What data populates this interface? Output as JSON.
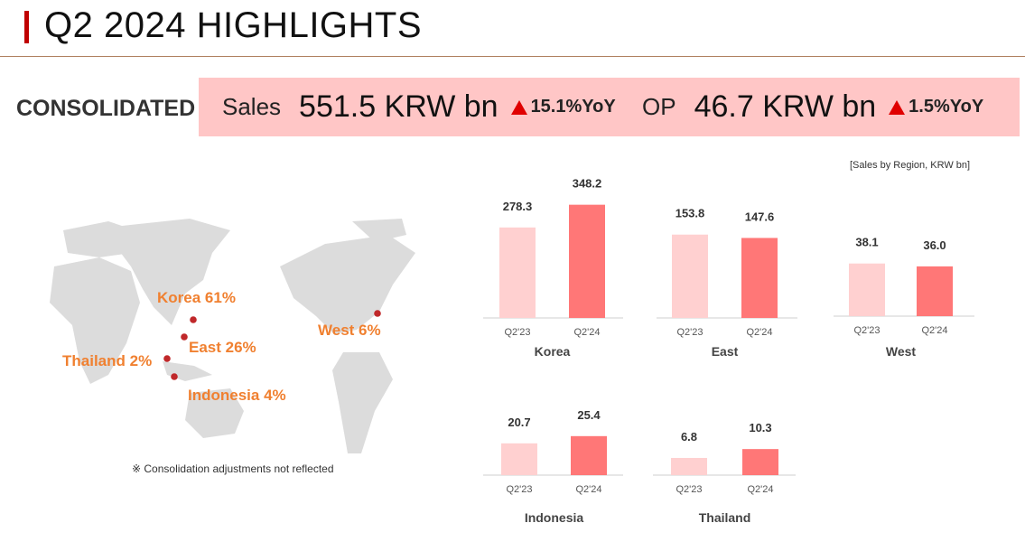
{
  "header": {
    "title": "Q2 2024 HIGHLIGHTS"
  },
  "consolidated": {
    "label": "CONSOLIDATED",
    "sales_label": "Sales",
    "sales_value": "551.5 KRW bn",
    "sales_yoy": "15.1%YoY",
    "op_label": "OP",
    "op_value": "46.7 KRW bn",
    "op_yoy": "1.5%YoY"
  },
  "source_note": "[Sales by Region, KRW bn]",
  "map": {
    "regions": [
      {
        "label": "Korea 61%"
      },
      {
        "label": "East 26%"
      },
      {
        "label": "Thailand 2%"
      },
      {
        "label": "Indonesia 4%"
      },
      {
        "label": "West 6%"
      }
    ],
    "footnote": "※ Consolidation adjustments not reflected"
  },
  "colors": {
    "accent": "#c00000",
    "bar_prev": "#ffd0d0",
    "bar_curr": "#ff7777",
    "map_fill": "#dcdcdc",
    "dot": "#c0282a",
    "region_text": "#f08030",
    "kpi_bg": "#ffc6c6"
  },
  "chart_data": [
    {
      "type": "bar",
      "title": "Korea",
      "categories": [
        "Q2'23",
        "Q2'24"
      ],
      "values": [
        278.3,
        348.2
      ],
      "value_labels": [
        "278.3",
        "348.2"
      ]
    },
    {
      "type": "bar",
      "title": "East",
      "categories": [
        "Q2'23",
        "Q2'24"
      ],
      "values": [
        153.8,
        147.6
      ],
      "value_labels": [
        "153.8",
        "147.6"
      ]
    },
    {
      "type": "bar",
      "title": "West",
      "categories": [
        "Q2'23",
        "Q2'24"
      ],
      "values": [
        38.1,
        36.0
      ],
      "value_labels": [
        "38.1",
        "36.0"
      ]
    },
    {
      "type": "bar",
      "title": "Indonesia",
      "categories": [
        "Q2'23",
        "Q2'24"
      ],
      "values": [
        20.7,
        25.4
      ],
      "value_labels": [
        "20.7",
        "25.4"
      ]
    },
    {
      "type": "bar",
      "title": "Thailand",
      "categories": [
        "Q2'23",
        "Q2'24"
      ],
      "values": [
        6.8,
        10.3
      ],
      "value_labels": [
        "6.8",
        "10.3"
      ]
    }
  ]
}
